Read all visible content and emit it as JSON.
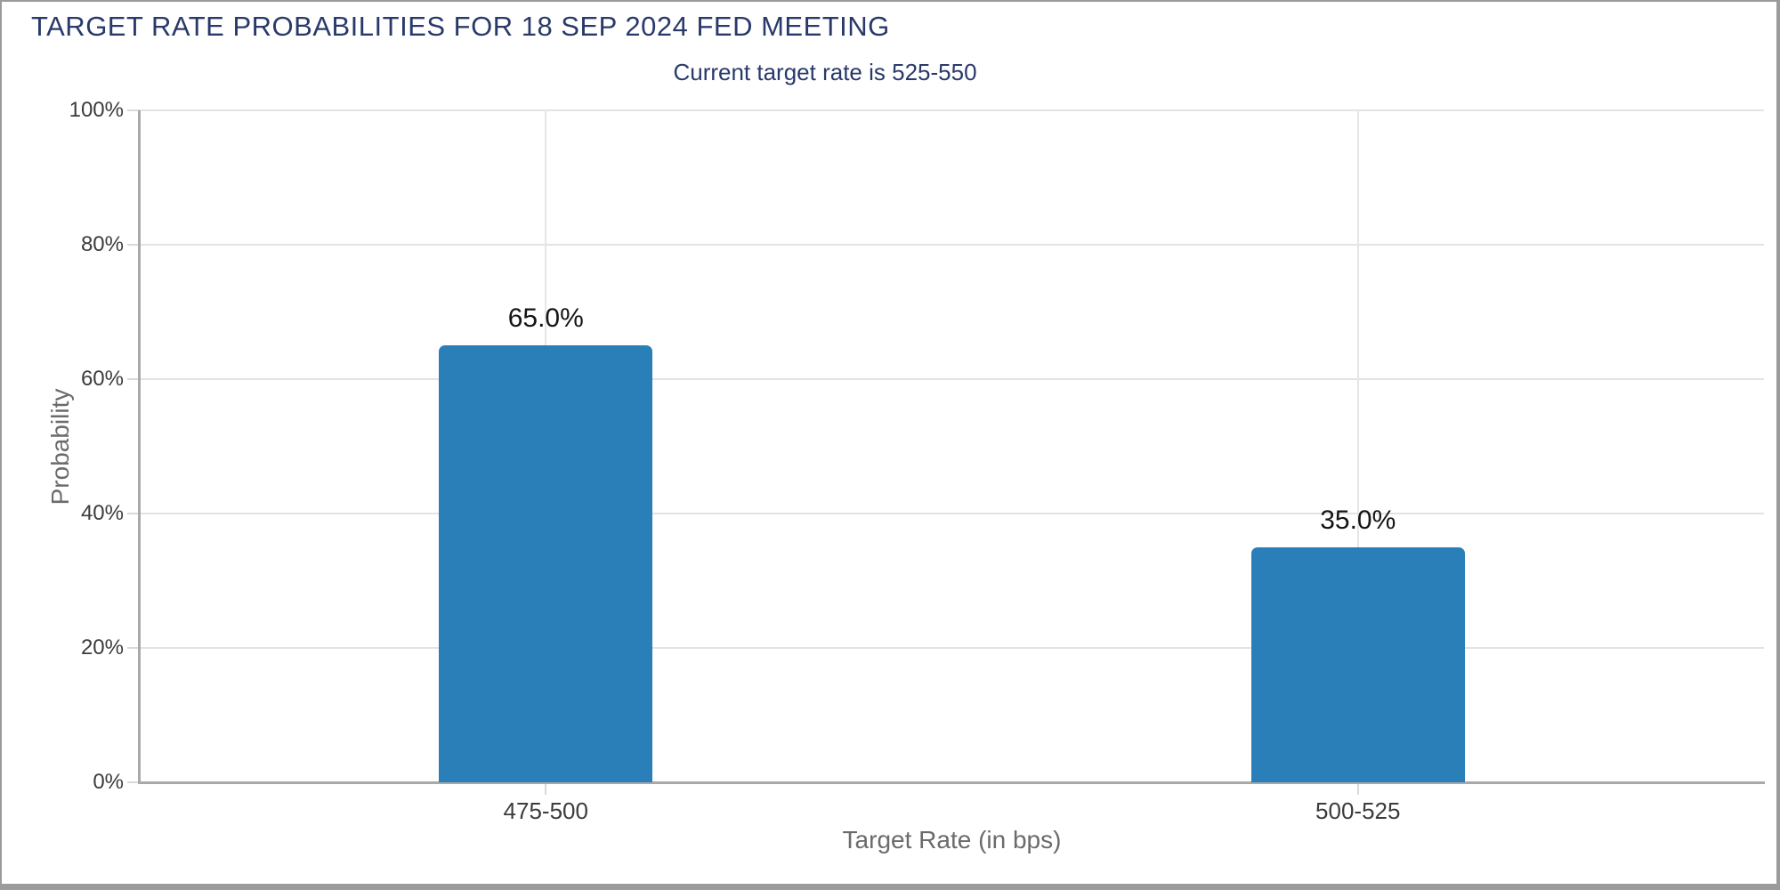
{
  "chart_data": {
    "type": "bar",
    "title": "TARGET RATE PROBABILITIES FOR 18 SEP 2024 FED MEETING",
    "subtitle": "Current target rate is 525-550",
    "xlabel": "Target Rate (in bps)",
    "ylabel": "Probability",
    "categories": [
      "475-500",
      "500-525"
    ],
    "values": [
      65.0,
      35.0
    ],
    "value_labels": [
      "65.0%",
      "35.0%"
    ],
    "yticks": [
      "0%",
      "20%",
      "40%",
      "60%",
      "80%",
      "100%"
    ],
    "ylim": [
      0,
      100
    ],
    "grid": true,
    "legend": "none",
    "colors": {
      "bar_blue": "#2a7fb9",
      "title_navy": "#293a6a",
      "gridline": "#e3e3e3",
      "axis_line": "#a9a9a9",
      "tick_text": "#3c3c3c",
      "axis_title_text": "#6b6b6b",
      "window_border": "#9b9b9b"
    }
  }
}
